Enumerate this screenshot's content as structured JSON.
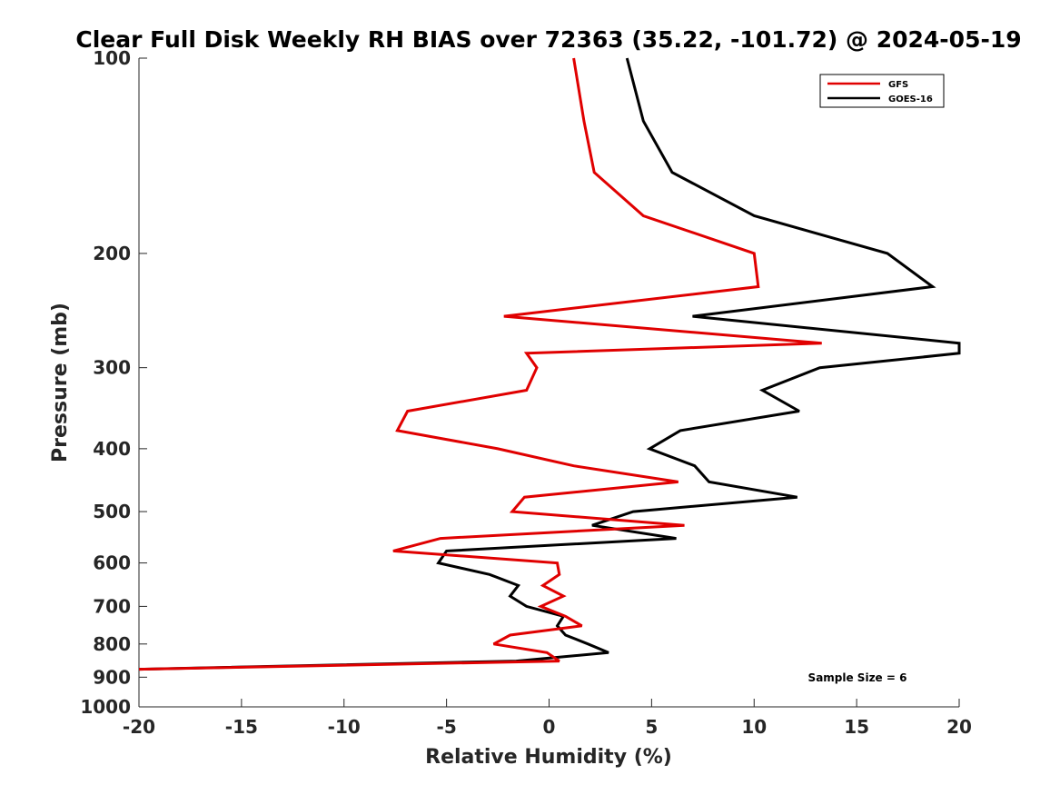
{
  "chart_data": {
    "type": "line",
    "title": "Clear Full Disk Weekly RH BIAS over 72363 (35.22, -101.72) @ 2024-05-19",
    "xlabel": "Relative Humidity (%)",
    "ylabel": "Pressure (mb)",
    "xlim": [
      -20,
      20
    ],
    "ylim": [
      100,
      1000
    ],
    "yscale": "log",
    "y_reversed": true,
    "xticks": [
      -20,
      -15,
      -10,
      -5,
      0,
      5,
      10,
      15,
      20
    ],
    "yticks": [
      100,
      200,
      300,
      400,
      500,
      600,
      700,
      800,
      900,
      1000
    ],
    "legend_location": "top-right",
    "annotation": "Sample Size = 6",
    "series": [
      {
        "name": "GFS",
        "color": "#e00000",
        "pressure": [
          100,
          125,
          150,
          175,
          200,
          225,
          250,
          275,
          285,
          300,
          325,
          350,
          375,
          400,
          425,
          450,
          475,
          500,
          525,
          550,
          575,
          600,
          625,
          650,
          675,
          700,
          725,
          750,
          775,
          800,
          825,
          850,
          875
        ],
        "rh": [
          1.2,
          1.7,
          2.2,
          4.6,
          10.0,
          10.2,
          -2.2,
          13.3,
          -1.1,
          -0.6,
          -1.1,
          -6.9,
          -7.4,
          -2.5,
          1.2,
          6.3,
          -1.2,
          -1.8,
          6.6,
          -5.3,
          -7.6,
          0.4,
          0.5,
          -0.3,
          0.7,
          -0.4,
          0.8,
          1.6,
          -1.9,
          -2.7,
          -0.1,
          0.5,
          -20.0
        ]
      },
      {
        "name": "GOES-16",
        "color": "#000000",
        "pressure": [
          100,
          125,
          150,
          175,
          200,
          225,
          250,
          275,
          285,
          300,
          325,
          350,
          375,
          400,
          425,
          450,
          475,
          500,
          525,
          550,
          575,
          600,
          625,
          650,
          675,
          700,
          725,
          750,
          775,
          800,
          825,
          850,
          875
        ],
        "rh": [
          3.8,
          4.6,
          6.0,
          10.0,
          16.5,
          18.7,
          7.0,
          20.0,
          20.0,
          13.2,
          10.4,
          12.2,
          6.4,
          4.9,
          7.1,
          7.8,
          12.1,
          4.1,
          2.1,
          6.2,
          -5.0,
          -5.4,
          -2.9,
          -1.5,
          -1.9,
          -1.1,
          0.7,
          0.4,
          0.8,
          1.9,
          2.9,
          -1.6,
          -20.0
        ]
      }
    ]
  }
}
